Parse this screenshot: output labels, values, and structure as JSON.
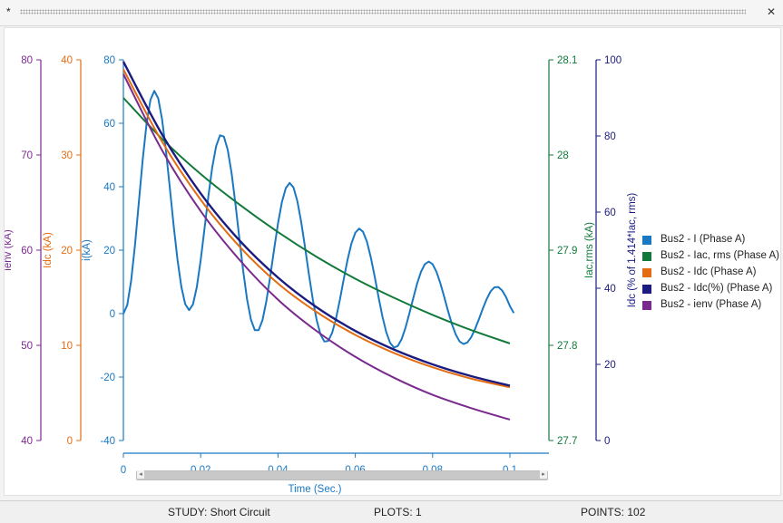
{
  "window": {
    "title": "*"
  },
  "status": {
    "study": "STUDY: Short Circuit",
    "plots": "PLOTS: 1",
    "points": "POINTS: 102"
  },
  "colors": {
    "i": "#1a78c2",
    "iac": "#117a3a",
    "idc": "#e46c12",
    "idcpct": "#1b1b80",
    "ienv": "#7a2a8f"
  },
  "icons": {
    "close": "close-icon",
    "scroll_left": "scroll-left-icon",
    "scroll_right": "scroll-right-icon"
  },
  "chart_data": {
    "type": "line",
    "xlabel": "Time (Sec.)",
    "xlim": [
      0,
      0.1
    ],
    "xticks": [
      "0",
      "0.02",
      "0.04",
      "0.06",
      "0.08",
      "0.1"
    ],
    "axes": [
      {
        "id": "ienv",
        "label": "ienv (kA)",
        "range": [
          40,
          80
        ],
        "ticks": [
          "40",
          "50",
          "60",
          "70",
          "80"
        ],
        "color": "#7a2a8f"
      },
      {
        "id": "idc",
        "label": "Idc (kA)",
        "range": [
          0,
          40
        ],
        "ticks": [
          "0",
          "10",
          "20",
          "30",
          "40"
        ],
        "color": "#e46c12"
      },
      {
        "id": "i",
        "label": "i(kA)",
        "range": [
          -40,
          80
        ],
        "ticks": [
          "-40",
          "-20",
          "0",
          "20",
          "40",
          "60",
          "80"
        ],
        "color": "#1a78c2"
      },
      {
        "id": "iac",
        "label": "Iac,rms (kA)",
        "range": [
          27.7,
          28.1
        ],
        "ticks": [
          "27.7",
          "27.8",
          "27.9",
          "28",
          "28.1"
        ],
        "color": "#117a3a"
      },
      {
        "id": "idcpct",
        "label": "Idc (% of 1.414*Iac, rms)",
        "range": [
          0,
          100
        ],
        "ticks": [
          "0",
          "20",
          "40",
          "60",
          "80",
          "100"
        ],
        "color": "#1b1b80"
      }
    ],
    "series": [
      {
        "name": "Bus2 - I (Phase A)",
        "axis": "i",
        "color": "#1a78c2",
        "x": [
          0,
          0.001,
          0.002,
          0.003,
          0.004,
          0.005,
          0.006,
          0.007,
          0.008,
          0.009,
          0.01,
          0.011,
          0.012,
          0.013,
          0.014,
          0.015,
          0.016,
          0.017,
          0.018,
          0.019,
          0.02,
          0.021,
          0.022,
          0.023,
          0.024,
          0.025,
          0.026,
          0.027,
          0.028,
          0.029,
          0.03,
          0.031,
          0.032,
          0.033,
          0.034,
          0.035,
          0.036,
          0.037,
          0.038,
          0.039,
          0.04,
          0.041,
          0.042,
          0.043,
          0.044,
          0.045,
          0.046,
          0.047,
          0.048,
          0.049,
          0.05,
          0.051,
          0.052,
          0.053,
          0.054,
          0.055,
          0.056,
          0.057,
          0.058,
          0.059,
          0.06,
          0.061,
          0.062,
          0.063,
          0.064,
          0.065,
          0.066,
          0.067,
          0.068,
          0.069,
          0.07,
          0.071,
          0.072,
          0.073,
          0.074,
          0.075,
          0.076,
          0.077,
          0.078,
          0.079,
          0.08,
          0.081,
          0.082,
          0.083,
          0.084,
          0.085,
          0.086,
          0.087,
          0.088,
          0.089,
          0.09,
          0.091,
          0.092,
          0.093,
          0.094,
          0.095,
          0.096,
          0.097,
          0.098,
          0.099,
          0.1,
          0.101
        ],
        "y": [
          0.0,
          2.7,
          10.3,
          21.6,
          35.1,
          48.6,
          59.9,
          67.4,
          70.2,
          67.9,
          61.3,
          51.5,
          39.8,
          27.8,
          17.0,
          8.4,
          3.0,
          1.1,
          2.9,
          8.4,
          16.9,
          26.9,
          37.1,
          46.2,
          52.8,
          56.2,
          55.8,
          51.6,
          44.2,
          34.5,
          23.8,
          13.4,
          4.5,
          -1.9,
          -5.2,
          -5.2,
          -2.0,
          4.0,
          11.8,
          20.3,
          28.4,
          35.1,
          39.5,
          41.2,
          39.8,
          35.5,
          28.9,
          20.9,
          12.4,
          4.5,
          -2.0,
          -6.6,
          -8.8,
          -8.6,
          -6.1,
          -1.6,
          4.3,
          10.8,
          17.0,
          22.1,
          25.5,
          26.8,
          25.8,
          22.7,
          17.8,
          11.8,
          5.3,
          -0.8,
          -5.8,
          -9.2,
          -10.7,
          -10.2,
          -8.0,
          -4.4,
          0.1,
          4.9,
          9.5,
          13.2,
          15.6,
          16.4,
          15.6,
          13.2,
          9.6,
          5.3,
          0.8,
          -3.3,
          -6.6,
          -8.8,
          -9.6,
          -9.1,
          -7.4,
          -4.8,
          -1.7,
          1.6,
          4.6,
          7.0,
          8.3,
          8.4,
          7.3,
          5.2,
          2.4,
          0.2
        ]
      },
      {
        "name": "Bus2 - Iac, rms (Phase A)",
        "axis": "iac",
        "color": "#117a3a",
        "x": [
          0,
          0.01,
          0.02,
          0.03,
          0.04,
          0.05,
          0.06,
          0.07,
          0.08,
          0.09,
          0.1
        ],
        "y": [
          28.06,
          28.017,
          27.98,
          27.948,
          27.919,
          27.893,
          27.87,
          27.85,
          27.832,
          27.816,
          27.802
        ]
      },
      {
        "name": "Bus2 - Idc (Phase A)",
        "axis": "idc",
        "color": "#e46c12",
        "x": [
          0,
          0.01,
          0.02,
          0.03,
          0.04,
          0.05,
          0.06,
          0.07,
          0.08,
          0.09,
          0.1
        ],
        "y": [
          39.0,
          31.4,
          25.3,
          20.4,
          16.5,
          13.5,
          11.1,
          9.2,
          7.7,
          6.5,
          5.6
        ]
      },
      {
        "name": "Bus2 - Idc(%) (Phase A)",
        "axis": "idcpct",
        "color": "#1b1b80",
        "x": [
          0,
          0.01,
          0.02,
          0.03,
          0.04,
          0.05,
          0.06,
          0.07,
          0.08,
          0.09,
          0.1
        ],
        "y": [
          99.5,
          80.4,
          64.9,
          52.6,
          42.8,
          35.0,
          28.8,
          23.9,
          20.0,
          16.9,
          14.4
        ]
      },
      {
        "name": "Bus2 - ienv (Phase A)",
        "axis": "ienv",
        "color": "#7a2a8f",
        "x": [
          0,
          0.01,
          0.02,
          0.03,
          0.04,
          0.05,
          0.06,
          0.07,
          0.08,
          0.09,
          0.1
        ],
        "y": [
          78.5,
          70.5,
          64.1,
          59.0,
          54.8,
          51.5,
          48.8,
          46.6,
          44.8,
          43.4,
          42.2
        ]
      }
    ]
  }
}
